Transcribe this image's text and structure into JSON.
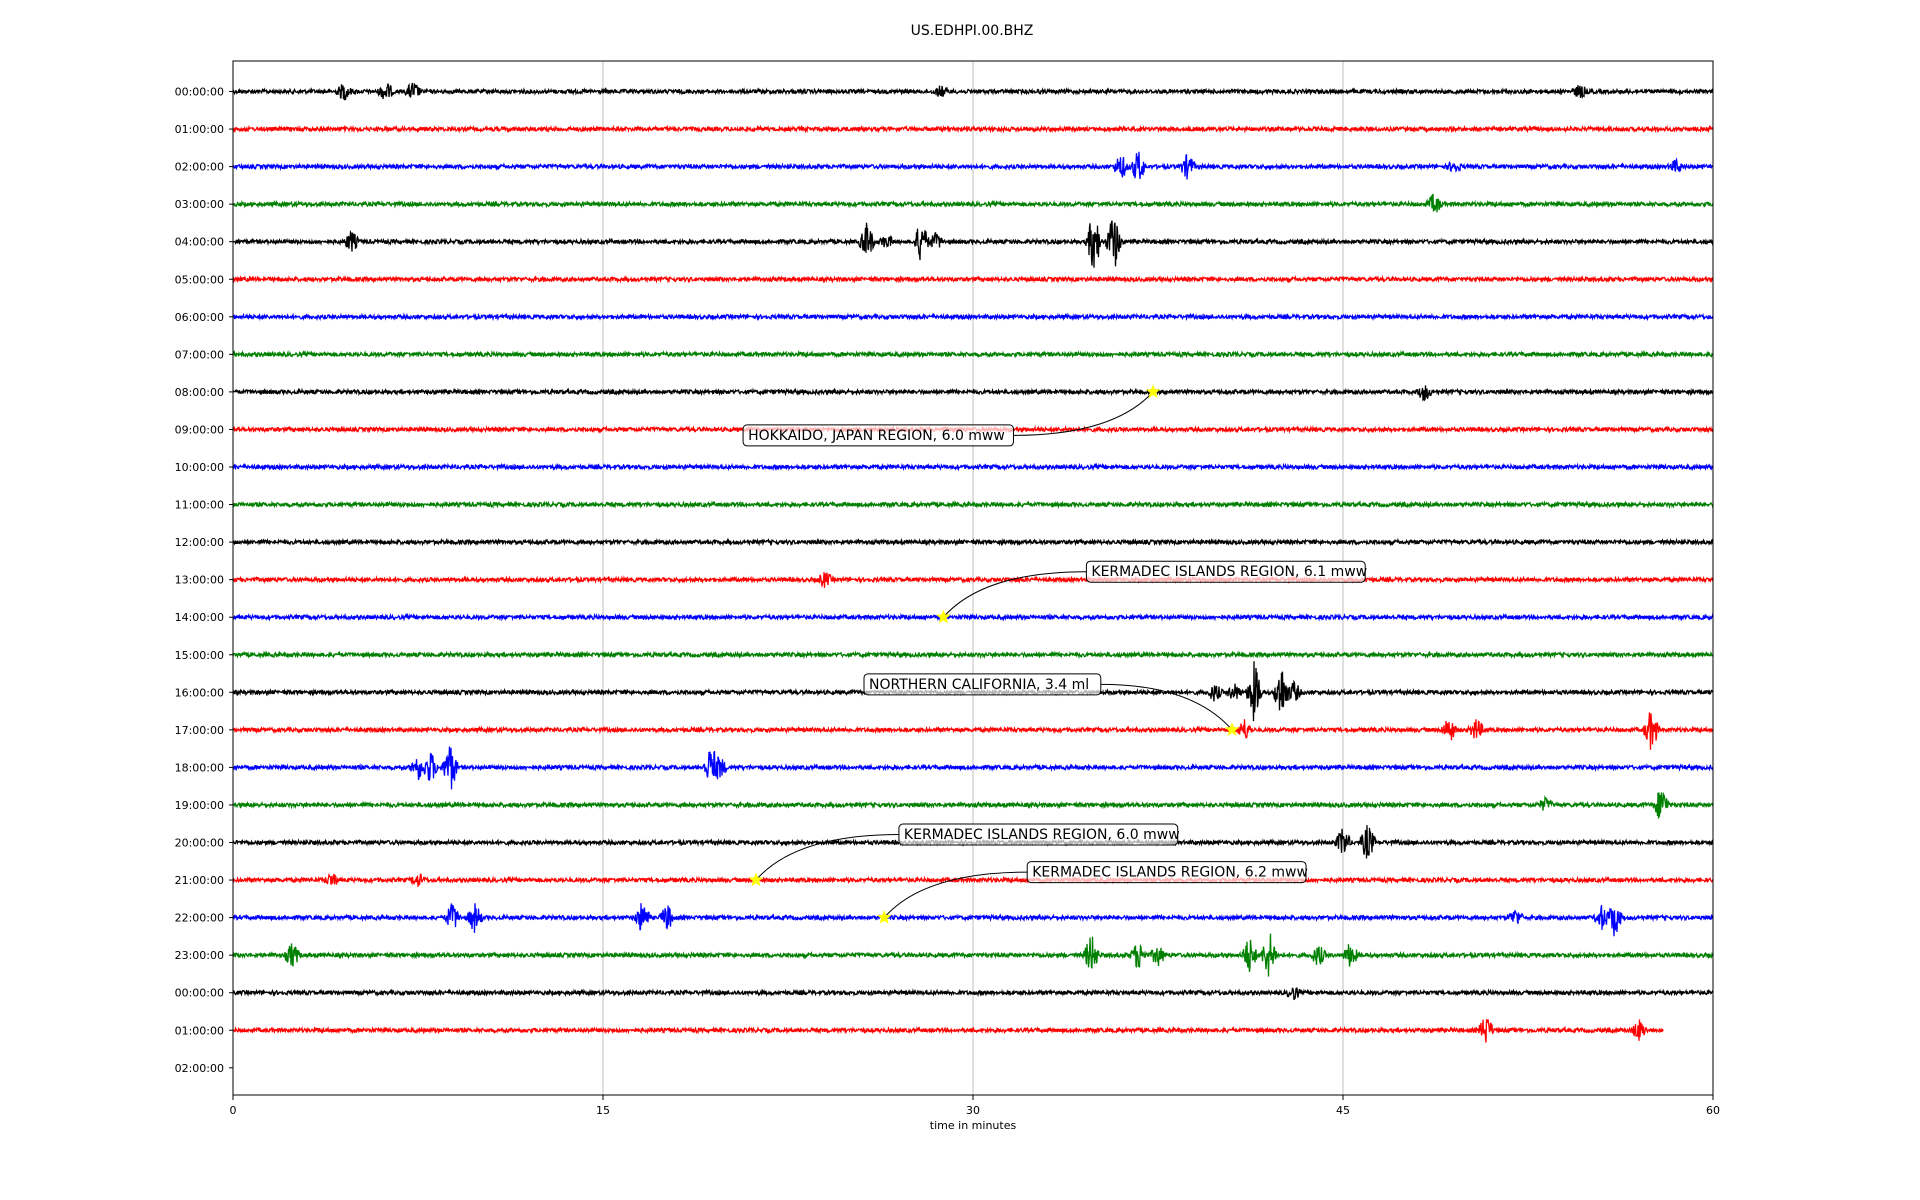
{
  "chart_data": {
    "type": "line",
    "title": "US.EDHPI.00.BHZ",
    "xlabel": "time in minutes",
    "ylabel": "",
    "xlim": [
      0,
      60
    ],
    "x_ticks": [
      0,
      15,
      30,
      45,
      60
    ],
    "x_tick_labels": [
      "0",
      "15",
      "30",
      "45",
      "60"
    ],
    "grid": "vertical",
    "row_labels": [
      "00:00:00",
      "01:00:00",
      "02:00:00",
      "03:00:00",
      "04:00:00",
      "05:00:00",
      "06:00:00",
      "07:00:00",
      "08:00:00",
      "09:00:00",
      "10:00:00",
      "11:00:00",
      "12:00:00",
      "13:00:00",
      "14:00:00",
      "15:00:00",
      "16:00:00",
      "17:00:00",
      "18:00:00",
      "19:00:00",
      "20:00:00",
      "21:00:00",
      "22:00:00",
      "23:00:00",
      "00:00:00",
      "01:00:00",
      "02:00:00"
    ],
    "trace_colors": [
      "#000000",
      "#ff0000",
      "#0000ff",
      "#008000"
    ],
    "traces": [
      {
        "row": 0,
        "color": "#000000",
        "end_min": 60,
        "noise": 2,
        "events": [
          {
            "t": 4.5,
            "a": 8
          },
          {
            "t": 6.2,
            "a": 9
          },
          {
            "t": 7.3,
            "a": 9
          },
          {
            "t": 28.7,
            "a": 5
          },
          {
            "t": 54.6,
            "a": 6
          }
        ]
      },
      {
        "row": 1,
        "color": "#ff0000",
        "end_min": 60,
        "noise": 2,
        "events": []
      },
      {
        "row": 2,
        "color": "#0000ff",
        "end_min": 60,
        "noise": 2,
        "events": [
          {
            "t": 36.0,
            "a": 12
          },
          {
            "t": 36.7,
            "a": 16
          },
          {
            "t": 38.7,
            "a": 12
          },
          {
            "t": 49.5,
            "a": 5
          },
          {
            "t": 58.5,
            "a": 6
          }
        ]
      },
      {
        "row": 3,
        "color": "#008000",
        "end_min": 60,
        "noise": 2,
        "events": [
          {
            "t": 48.7,
            "a": 10
          }
        ]
      },
      {
        "row": 4,
        "color": "#000000",
        "end_min": 60,
        "noise": 2,
        "events": [
          {
            "t": 4.8,
            "a": 10
          },
          {
            "t": 25.7,
            "a": 18
          },
          {
            "t": 26.5,
            "a": 6
          },
          {
            "t": 27.9,
            "a": 20
          },
          {
            "t": 28.5,
            "a": 8
          },
          {
            "t": 34.9,
            "a": 30
          },
          {
            "t": 35.7,
            "a": 30
          }
        ]
      },
      {
        "row": 5,
        "color": "#ff0000",
        "end_min": 60,
        "noise": 2,
        "events": []
      },
      {
        "row": 6,
        "color": "#0000ff",
        "end_min": 60,
        "noise": 2,
        "events": []
      },
      {
        "row": 7,
        "color": "#008000",
        "end_min": 60,
        "noise": 2,
        "events": []
      },
      {
        "row": 8,
        "color": "#000000",
        "end_min": 60,
        "noise": 2,
        "events": [
          {
            "t": 48.3,
            "a": 8
          }
        ]
      },
      {
        "row": 9,
        "color": "#ff0000",
        "end_min": 60,
        "noise": 2,
        "events": []
      },
      {
        "row": 10,
        "color": "#0000ff",
        "end_min": 60,
        "noise": 2,
        "events": []
      },
      {
        "row": 11,
        "color": "#008000",
        "end_min": 60,
        "noise": 2,
        "events": []
      },
      {
        "row": 12,
        "color": "#000000",
        "end_min": 60,
        "noise": 2,
        "events": []
      },
      {
        "row": 13,
        "color": "#ff0000",
        "end_min": 60,
        "noise": 2,
        "events": [
          {
            "t": 24.0,
            "a": 7
          }
        ]
      },
      {
        "row": 14,
        "color": "#0000ff",
        "end_min": 60,
        "noise": 2,
        "events": []
      },
      {
        "row": 15,
        "color": "#008000",
        "end_min": 60,
        "noise": 2,
        "events": []
      },
      {
        "row": 16,
        "color": "#000000",
        "end_min": 60,
        "noise": 2,
        "events": [
          {
            "t": 39.8,
            "a": 8
          },
          {
            "t": 40.6,
            "a": 8
          },
          {
            "t": 41.4,
            "a": 30
          },
          {
            "t": 42.5,
            "a": 28
          },
          {
            "t": 43.0,
            "a": 10
          }
        ]
      },
      {
        "row": 17,
        "color": "#ff0000",
        "end_min": 60,
        "noise": 2,
        "events": [
          {
            "t": 41.0,
            "a": 10
          },
          {
            "t": 49.3,
            "a": 12
          },
          {
            "t": 50.4,
            "a": 10
          },
          {
            "t": 57.5,
            "a": 20
          }
        ]
      },
      {
        "row": 18,
        "color": "#0000ff",
        "end_min": 60,
        "noise": 2,
        "events": [
          {
            "t": 7.5,
            "a": 12
          },
          {
            "t": 8.0,
            "a": 16
          },
          {
            "t": 8.8,
            "a": 25
          },
          {
            "t": 19.4,
            "a": 22
          },
          {
            "t": 19.7,
            "a": 12
          }
        ]
      },
      {
        "row": 19,
        "color": "#008000",
        "end_min": 60,
        "noise": 2,
        "events": [
          {
            "t": 53.2,
            "a": 6
          },
          {
            "t": 57.9,
            "a": 18
          }
        ]
      },
      {
        "row": 20,
        "color": "#000000",
        "end_min": 60,
        "noise": 2,
        "events": [
          {
            "t": 45.0,
            "a": 14
          },
          {
            "t": 46.0,
            "a": 18
          }
        ]
      },
      {
        "row": 21,
        "color": "#ff0000",
        "end_min": 60,
        "noise": 2,
        "events": [
          {
            "t": 4.0,
            "a": 6
          },
          {
            "t": 7.5,
            "a": 6
          }
        ]
      },
      {
        "row": 22,
        "color": "#0000ff",
        "end_min": 60,
        "noise": 2,
        "events": [
          {
            "t": 8.9,
            "a": 14
          },
          {
            "t": 9.8,
            "a": 14
          },
          {
            "t": 16.6,
            "a": 16
          },
          {
            "t": 17.6,
            "a": 12
          },
          {
            "t": 52.0,
            "a": 8
          },
          {
            "t": 55.5,
            "a": 12
          },
          {
            "t": 56.0,
            "a": 18
          }
        ]
      },
      {
        "row": 23,
        "color": "#008000",
        "end_min": 60,
        "noise": 2,
        "events": [
          {
            "t": 2.4,
            "a": 12
          },
          {
            "t": 34.8,
            "a": 20
          },
          {
            "t": 36.7,
            "a": 14
          },
          {
            "t": 37.5,
            "a": 10
          },
          {
            "t": 41.2,
            "a": 18
          },
          {
            "t": 42.0,
            "a": 24
          },
          {
            "t": 44.0,
            "a": 10
          },
          {
            "t": 45.3,
            "a": 12
          }
        ]
      },
      {
        "row": 24,
        "color": "#000000",
        "end_min": 60,
        "noise": 2,
        "events": [
          {
            "t": 43.0,
            "a": 6
          }
        ]
      },
      {
        "row": 25,
        "color": "#ff0000",
        "end_min": 58,
        "noise": 2,
        "events": [
          {
            "t": 50.8,
            "a": 14
          },
          {
            "t": 57.0,
            "a": 10
          }
        ]
      }
    ],
    "events": [
      {
        "label": "HOKKAIDO, JAPAN REGION, 6.0 mww",
        "row": 8,
        "t": 37.3,
        "label_side": "below-left"
      },
      {
        "label": "KERMADEC ISLANDS REGION, 6.1 mww",
        "row": 14,
        "t": 28.8,
        "label_side": "above-right"
      },
      {
        "label": "NORTHERN CALIFORNIA, 3.4 ml",
        "row": 17,
        "t": 40.5,
        "label_side": "above-left"
      },
      {
        "label": "KERMADEC ISLANDS REGION, 6.0 mww",
        "row": 21,
        "t": 21.2,
        "label_side": "above-right"
      },
      {
        "label": "KERMADEC ISLANDS REGION, 6.2 mww",
        "row": 22,
        "t": 26.4,
        "label_side": "above-right"
      }
    ],
    "marker_color": "#ffff00"
  }
}
